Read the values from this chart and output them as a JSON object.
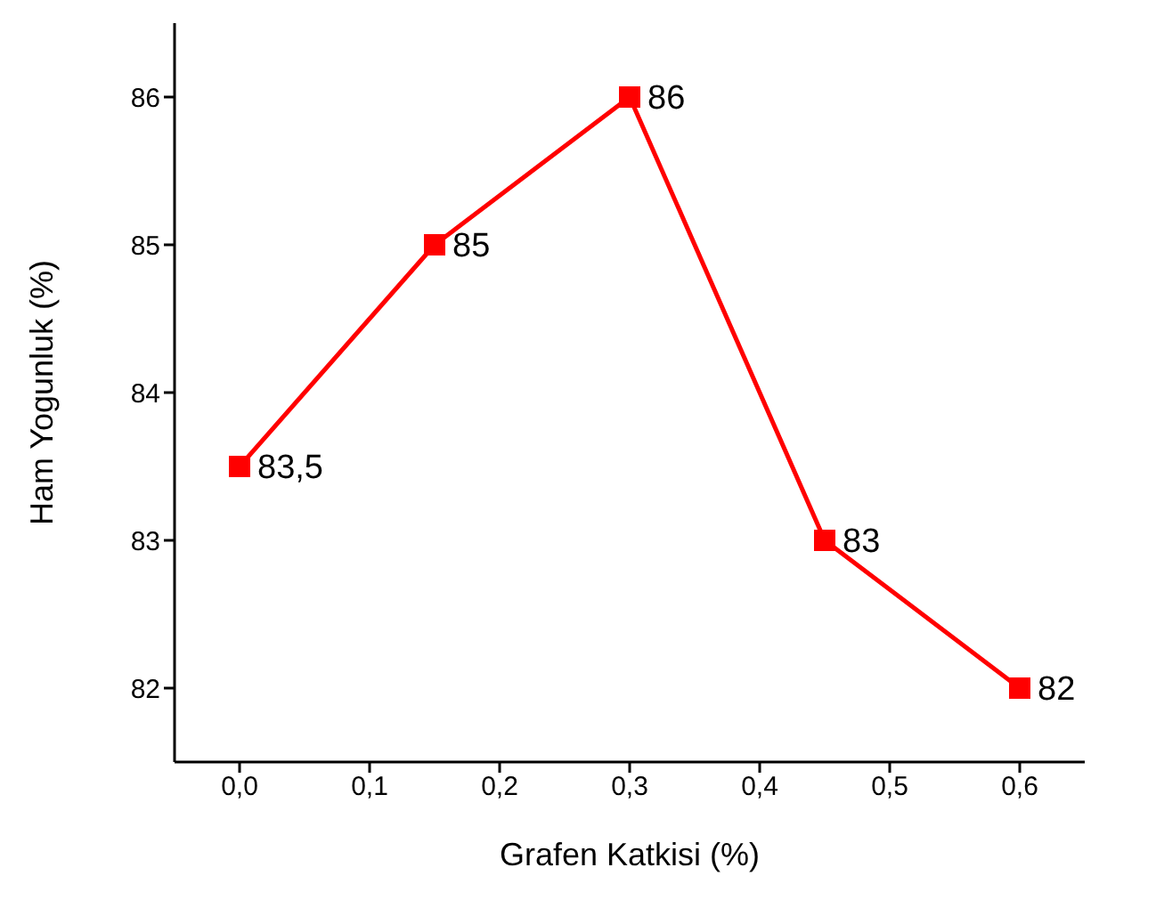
{
  "chart_data": {
    "type": "line",
    "xlabel": "Grafen Katkisi (%)",
    "ylabel": "Ham Yogunluk (%)",
    "x": [
      0,
      0.15,
      0.3,
      0.45,
      0.6
    ],
    "series": [
      {
        "color": "#ff0000",
        "values": [
          83.5,
          85,
          86,
          83,
          82
        ],
        "value_labels": [
          "83,5",
          "85",
          "86",
          "83",
          "82"
        ]
      }
    ],
    "xlim": [
      -0.05,
      0.65
    ],
    "xticks": [
      {
        "value": 0,
        "label": "0,0"
      },
      {
        "value": 0.1,
        "label": "0,1"
      },
      {
        "value": 0.2,
        "label": "0,2"
      },
      {
        "value": 0.3,
        "label": "0,3"
      },
      {
        "value": 0.4,
        "label": "0,4"
      },
      {
        "value": 0.5,
        "label": "0,5"
      },
      {
        "value": 0.6,
        "label": "0,6"
      }
    ],
    "ylim": [
      81.5,
      86.5
    ],
    "yticks": [
      82,
      83,
      84,
      85,
      86
    ],
    "grid": false,
    "legend": false,
    "marker": "square",
    "line_style": "solid"
  }
}
